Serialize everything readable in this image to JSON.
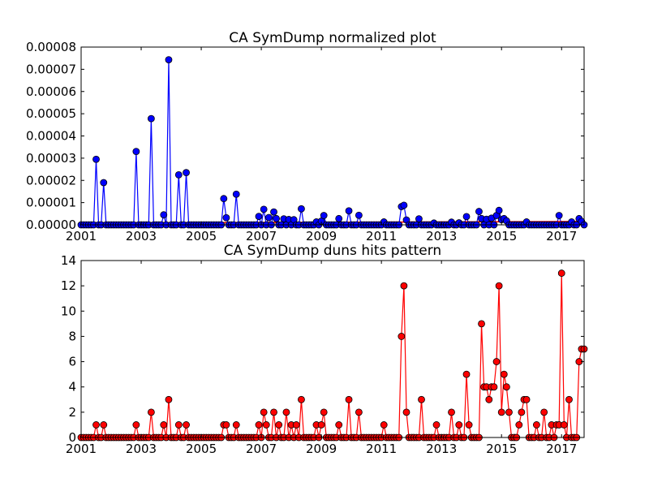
{
  "chart_data": [
    {
      "type": "line",
      "title": "CA SymDump normalized plot",
      "xlabel": "",
      "ylabel": "",
      "xlim": [
        2001.0,
        2017.75
      ],
      "ylim": [
        0,
        8e-05
      ],
      "x_ticks": [
        "2001",
        "2003",
        "2005",
        "2007",
        "2009",
        "2011",
        "2013",
        "2015",
        "2017"
      ],
      "y_ticks": [
        "0.00000",
        "0.00001",
        "0.00002",
        "0.00003",
        "0.00004",
        "0.00005",
        "0.00006",
        "0.00007",
        "0.00008"
      ],
      "grid": false,
      "series": [
        {
          "color": "#0000ff",
          "marker": "circle",
          "x": [
            2001.5,
            2001.75,
            2002.83,
            2003.33,
            2003.75,
            2003.92,
            2004.25,
            2004.5,
            2005.75,
            2005.83,
            2006.17,
            2006.92,
            2007.08,
            2007.25,
            2007.42,
            2007.5,
            2007.75,
            2007.92,
            2008.08,
            2008.33,
            2008.83,
            2009.0,
            2009.08,
            2009.58,
            2009.92,
            2010.25,
            2011.08,
            2011.67,
            2011.75,
            2011.83,
            2012.25,
            2012.75,
            2013.33,
            2013.58,
            2013.83,
            2014.25,
            2014.33,
            2014.5,
            2014.67,
            2014.83,
            2014.92,
            2015.0,
            2015.08,
            2015.17,
            2015.83,
            2016.92,
            2017.33,
            2017.58,
            2017.67
          ],
          "values": [
            2.95e-05,
            1.9e-05,
            3.3e-05,
            4.78e-05,
            4.5e-06,
            7.43e-05,
            2.25e-05,
            2.35e-05,
            1.18e-05,
            3.2e-06,
            1.38e-05,
            3.8e-06,
            7e-06,
            3.3e-06,
            5.8e-06,
            2.8e-06,
            2.7e-06,
            2.4e-06,
            2.3e-06,
            7.2e-06,
            1.3e-06,
            1.7e-06,
            4.2e-06,
            2.8e-06,
            6.3e-06,
            4.3e-06,
            1.3e-06,
            8.2e-06,
            8.8e-06,
            2.2e-06,
            2.7e-06,
            8e-07,
            1.2e-06,
            9e-07,
            3.7e-06,
            6e-06,
            2.8e-06,
            2.5e-06,
            3e-06,
            4.2e-06,
            6.5e-06,
            2.3e-06,
            2.8e-06,
            1.8e-06,
            1.3e-06,
            4.2e-06,
            1.3e-06,
            2.8e-06,
            1.5e-06
          ],
          "trend": {
            "color": "#ff0000",
            "x": [
              2001.0,
              2017.75
            ],
            "values": [
              8e-07,
              1.5e-06
            ]
          }
        }
      ]
    },
    {
      "type": "line",
      "title": "CA SymDump duns hits pattern",
      "xlabel": "",
      "ylabel": "",
      "xlim": [
        2001.0,
        2017.75
      ],
      "ylim": [
        0,
        14
      ],
      "x_ticks": [
        "2001",
        "2003",
        "2005",
        "2007",
        "2009",
        "2011",
        "2013",
        "2015",
        "2017"
      ],
      "y_ticks": [
        "0",
        "2",
        "4",
        "6",
        "8",
        "10",
        "12",
        "14"
      ],
      "grid": false,
      "series": [
        {
          "color": "#ff0000",
          "marker": "circle",
          "x": [
            2001.5,
            2001.75,
            2002.83,
            2003.33,
            2003.75,
            2003.92,
            2004.25,
            2004.5,
            2005.75,
            2005.83,
            2006.17,
            2006.92,
            2007.08,
            2007.17,
            2007.42,
            2007.58,
            2007.83,
            2008.0,
            2008.17,
            2008.33,
            2008.83,
            2009.0,
            2009.08,
            2009.58,
            2009.92,
            2010.25,
            2011.08,
            2011.67,
            2011.75,
            2011.83,
            2012.33,
            2012.83,
            2013.33,
            2013.58,
            2013.83,
            2013.92,
            2014.33,
            2014.42,
            2014.5,
            2014.58,
            2014.67,
            2014.75,
            2014.83,
            2014.92,
            2015.0,
            2015.08,
            2015.17,
            2015.25,
            2015.58,
            2015.67,
            2015.75,
            2015.83,
            2016.17,
            2016.42,
            2016.67,
            2016.83,
            2016.92,
            2017.0,
            2017.08,
            2017.25,
            2017.58,
            2017.67,
            2017.75
          ],
          "values": [
            1,
            1,
            1,
            2,
            1,
            3,
            1,
            1,
            1,
            1,
            1,
            1,
            2,
            1,
            2,
            1,
            2,
            1,
            1,
            3,
            1,
            1,
            2,
            1,
            3,
            2,
            1,
            8,
            12,
            2,
            3,
            1,
            2,
            1,
            5,
            1,
            9,
            4,
            4,
            3,
            4,
            4,
            6,
            12,
            2,
            5,
            4,
            2,
            1,
            2,
            3,
            3,
            1,
            2,
            1,
            1,
            1,
            13,
            1,
            3,
            6,
            7,
            7
          ]
        }
      ]
    }
  ]
}
